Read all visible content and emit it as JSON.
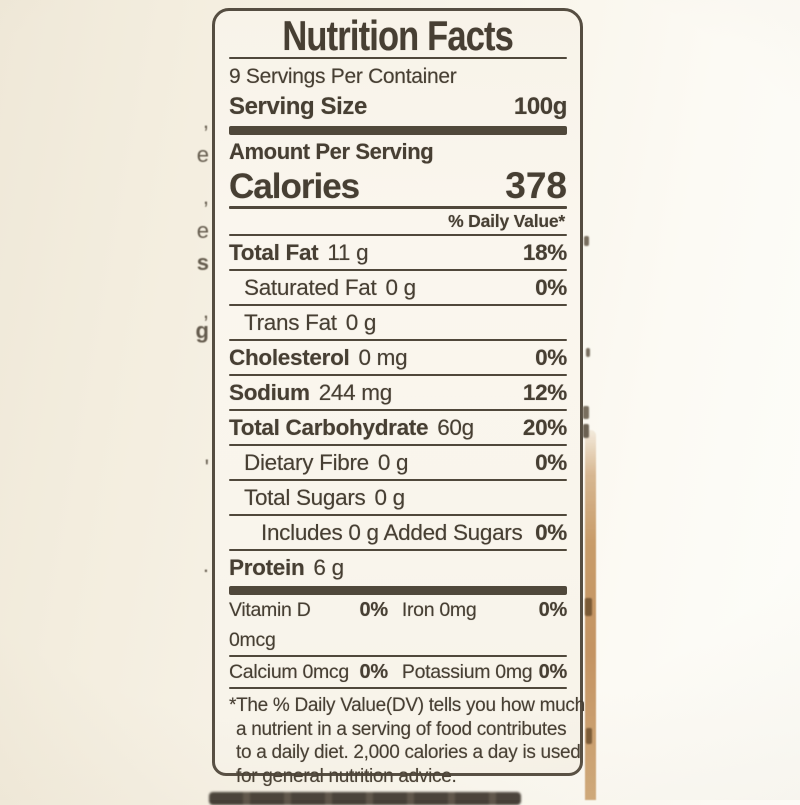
{
  "photo": {
    "paper_color": "#f8f4ea",
    "ink_color": "#473f33",
    "background_left_color": "#efe8d8",
    "background_right_color": "#fdfdf9",
    "package_edge_color": "#c89c69"
  },
  "label": {
    "title": "Nutrition Facts",
    "servings_per_container": "9 Servings Per Container",
    "serving_size": {
      "label": "Serving Size",
      "value": "100g"
    },
    "amount_per_serving": "Amount Per Serving",
    "calories": {
      "label": "Calories",
      "value": "378"
    },
    "daily_value_header": "% Daily Value*",
    "rows": [
      {
        "name": "Total Fat",
        "amount": "11 g",
        "dv": "18%"
      },
      {
        "name": "Saturated Fat",
        "amount": "0 g",
        "dv": "0%"
      },
      {
        "name": "Trans Fat",
        "amount": "0 g",
        "dv": ""
      },
      {
        "name": "Cholesterol",
        "amount": "0 mg",
        "dv": "0%"
      },
      {
        "name": "Sodium",
        "amount": "244 mg",
        "dv": "12%"
      },
      {
        "name": "Total Carbohydrate",
        "amount": "60g",
        "dv": "20%"
      },
      {
        "name": "Dietary Fibre",
        "amount": "0 g",
        "dv": "0%"
      },
      {
        "name": "Total Sugars",
        "amount": "0 g",
        "dv": ""
      },
      {
        "name": "Includes 0 g Added Sugars",
        "amount": "",
        "dv": "0%"
      },
      {
        "name": "Protein",
        "amount": "6 g",
        "dv": ""
      }
    ],
    "micronutrients": [
      {
        "text": "Vitamin D 0mcg",
        "dv": "0%"
      },
      {
        "text": "Iron 0mg",
        "dv": "0%"
      },
      {
        "text": "Calcium 0mcg",
        "dv": "0%"
      },
      {
        "text": "Potassium 0mg",
        "dv": "0%"
      }
    ],
    "footnote_lines": [
      "*The % Daily Value(DV) tells you how much",
      "a nutrient in a serving of food contributes",
      "to a daily diet. 2,000 calories a day is used",
      "for general nutrition advice."
    ]
  },
  "artifacts": {
    "left_edge_fragments": [
      ",",
      "e",
      ",",
      "e",
      "s",
      ",",
      "g",
      "'",
      "."
    ]
  }
}
